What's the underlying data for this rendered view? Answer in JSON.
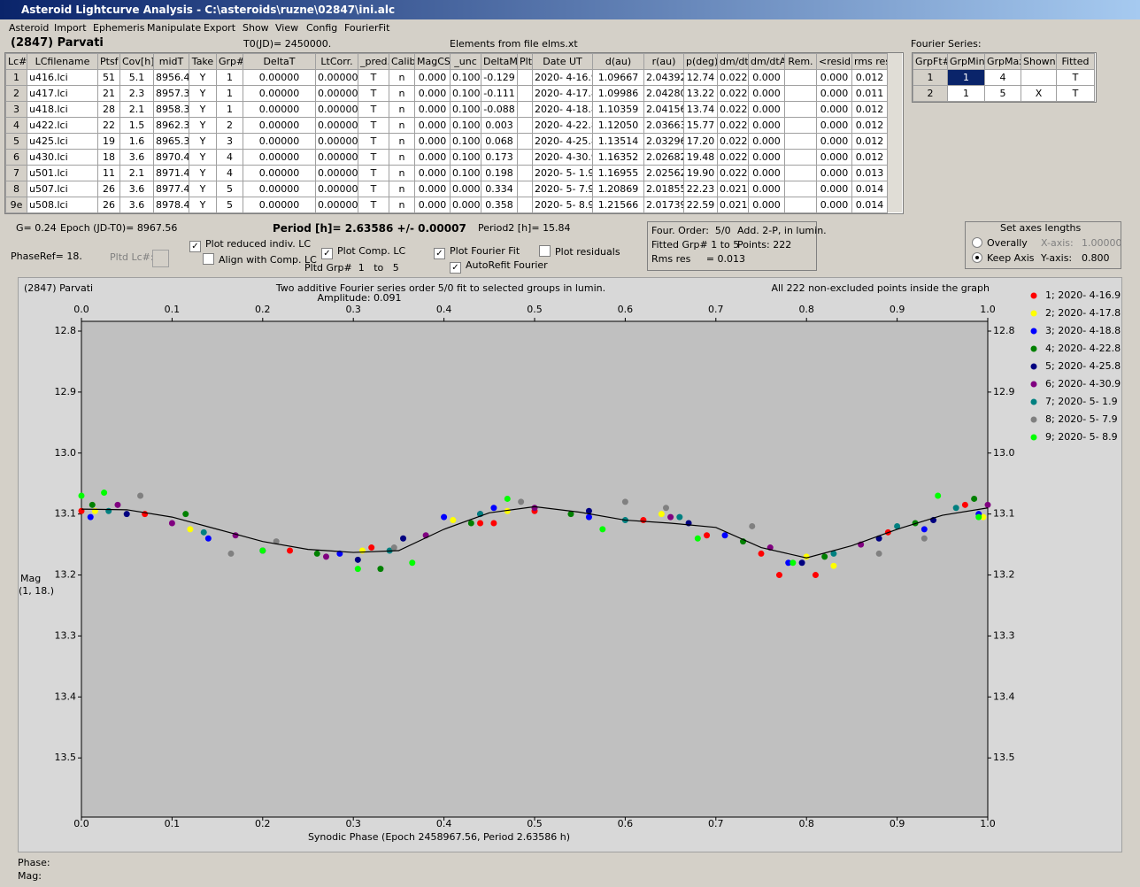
{
  "window": {
    "title": "Asteroid Lightcurve Analysis - C:\\asteroids\\ruzne\\02847\\ini.alc"
  },
  "menu": [
    "Asteroid",
    "Import",
    "Ephemeris",
    "Manipulate",
    "Export",
    "Show",
    "View",
    "Config",
    "FourierFit"
  ],
  "header": {
    "asteroid": "(2847) Parvati",
    "t0": "T0(JD)= 2450000.",
    "elements": "Elements from file elms.xt"
  },
  "lc_table": {
    "columns": [
      "Lc#",
      "LCfilename",
      "Ptsf",
      "Cov[h]",
      "midT",
      "Take",
      "Grp#",
      "DeltaT",
      "LtCorr.",
      "_pred.",
      "Calib",
      "MagCS",
      "_unc",
      "DeltaM",
      "Plt",
      "Date UT",
      "d(au)",
      "r(au)",
      "p(deg)",
      "dm/dt",
      "dm/dtA",
      "Rem.",
      "<resid>",
      "rms res"
    ],
    "rows": [
      [
        "1",
        "u416.lci",
        "51",
        "5.1",
        "8956.4",
        "Y",
        "1",
        "0.00000",
        "0.00000",
        "T",
        "n",
        "0.000",
        "0.100",
        "-0.129",
        null,
        "2020- 4-16.9",
        "1.09667",
        "2.04392",
        "12.74",
        "0.022",
        "0.000",
        null,
        "0.000",
        "0.012"
      ],
      [
        "2",
        "u417.lci",
        "21",
        "2.3",
        "8957.3",
        "Y",
        "1",
        "0.00000",
        "0.00000",
        "T",
        "n",
        "0.000",
        "0.100",
        "-0.111",
        null,
        "2020- 4-17.8",
        "1.09986",
        "2.04280",
        "13.22",
        "0.022",
        "0.000",
        null,
        "0.000",
        "0.011"
      ],
      [
        "3",
        "u418.lci",
        "28",
        "2.1",
        "8958.3",
        "Y",
        "1",
        "0.00000",
        "0.00000",
        "T",
        "n",
        "0.000",
        "0.100",
        "-0.088",
        null,
        "2020- 4-18.8",
        "1.10359",
        "2.04156",
        "13.74",
        "0.022",
        "0.000",
        null,
        "0.000",
        "0.012"
      ],
      [
        "4",
        "u422.lci",
        "22",
        "1.5",
        "8962.3",
        "Y",
        "2",
        "0.00000",
        "0.00000",
        "T",
        "n",
        "0.000",
        "0.100",
        "0.003",
        null,
        "2020- 4-22.8",
        "1.12050",
        "2.03663",
        "15.77",
        "0.022",
        "0.000",
        null,
        "0.000",
        "0.012"
      ],
      [
        "5",
        "u425.lci",
        "19",
        "1.6",
        "8965.3",
        "Y",
        "3",
        "0.00000",
        "0.00000",
        "T",
        "n",
        "0.000",
        "0.100",
        "0.068",
        null,
        "2020- 4-25.8",
        "1.13514",
        "2.03296",
        "17.20",
        "0.022",
        "0.000",
        null,
        "0.000",
        "0.012"
      ],
      [
        "6",
        "u430.lci",
        "18",
        "3.6",
        "8970.4",
        "Y",
        "4",
        "0.00000",
        "0.00000",
        "T",
        "n",
        "0.000",
        "0.100",
        "0.173",
        null,
        "2020- 4-30.9",
        "1.16352",
        "2.02682",
        "19.48",
        "0.022",
        "0.000",
        null,
        "0.000",
        "0.012"
      ],
      [
        "7",
        "u501.lci",
        "11",
        "2.1",
        "8971.4",
        "Y",
        "4",
        "0.00000",
        "0.00000",
        "T",
        "n",
        "0.000",
        "0.100",
        "0.198",
        null,
        "2020- 5- 1.9",
        "1.16955",
        "2.02562",
        "19.90",
        "0.022",
        "0.000",
        null,
        "0.000",
        "0.013"
      ],
      [
        "8",
        "u507.lci",
        "26",
        "3.6",
        "8977.4",
        "Y",
        "5",
        "0.00000",
        "0.00000",
        "T",
        "n",
        "0.000",
        "0.000",
        "0.334",
        null,
        "2020- 5- 7.9",
        "1.20869",
        "2.01855",
        "22.23",
        "0.021",
        "0.000",
        null,
        "0.000",
        "0.014"
      ],
      [
        "9e",
        "u508.lci",
        "26",
        "3.6",
        "8978.4",
        "Y",
        "5",
        "0.00000",
        "0.00000",
        "T",
        "n",
        "0.000",
        "0.000",
        "0.358",
        null,
        "2020- 5- 8.9",
        "1.21566",
        "2.01739",
        "22.59",
        "0.021",
        "0.000",
        null,
        "0.000",
        "0.014"
      ]
    ]
  },
  "fourier": {
    "label": "Fourier Series:",
    "columns": [
      "GrpFt#",
      "GrpMin",
      "GrpMax",
      "Shown",
      "Fitted"
    ],
    "rows": [
      [
        "1",
        "1",
        "4",
        null,
        "T"
      ],
      [
        "2",
        "1",
        "5",
        "X",
        "T"
      ]
    ]
  },
  "controls": {
    "g": "G= 0.24",
    "epoch": "Epoch (JD-T0)= 8967.56",
    "period": "Period [h]= 2.63586 +/- 0.00007",
    "period2": "Period2 [h]= 15.84",
    "phaseref": "PhaseRef= 18.",
    "pltd_lc": "Pltd Lc#:",
    "pltd_grp": "Pltd Grp#  1   to   5",
    "checks": [
      {
        "label": "Plot reduced indiv. LC",
        "checked": true
      },
      {
        "label": "Align with Comp. LC",
        "checked": false
      },
      {
        "label": "Plot Comp. LC",
        "checked": true
      },
      {
        "label": "Plot Fourier Fit",
        "checked": true
      },
      {
        "label": "AutoRefit Fourier",
        "checked": true
      },
      {
        "label": "Plot residuals",
        "checked": false
      }
    ],
    "info": [
      "Four. Order:  5/0",
      "Add. 2-P, in lumin.",
      "Fitted Grp# 1 to 5",
      "Points: 222",
      "Rms res     = 0.013"
    ],
    "axes": {
      "title": "Set axes lengths",
      "radios": [
        {
          "label": "Overally",
          "selected": false
        },
        {
          "label": "Keep Axis",
          "selected": true
        }
      ],
      "x_label": "X-axis:",
      "x_value": "1.00000",
      "y_label": "Y-axis:",
      "y_value": "0.800"
    },
    "phase": "Phase:",
    "mag": "Mag:"
  },
  "chart_data": {
    "type": "scatter",
    "name": "(2847) Parvati",
    "title": "Two additive Fourier series order 5/0 fit to selected groups in lumin.",
    "subtitle": "Amplitude: 0.091",
    "note": "All 222 non-excluded points inside the graph",
    "x_label": "Synodic Phase (Epoch 2458967.56, Period 2.63586 h)",
    "y_label": [
      "Mag",
      "(1, 18.)"
    ],
    "xlim": [
      0,
      1
    ],
    "ylim": [
      12.784,
      13.597
    ],
    "y_reversed": true,
    "xticks": [
      {
        "value": 0,
        "label": "0.0"
      },
      0.1,
      0.2,
      0.3,
      0.4,
      0.5,
      0.6,
      0.7,
      0.8,
      0.9,
      {
        "value": 1,
        "label": "1.0"
      }
    ],
    "yticks": [
      12.8,
      12.9,
      {
        "value": 13,
        "label": "13.0"
      },
      13.1,
      13.2,
      13.3,
      13.4,
      13.5
    ],
    "fit": {
      "color": "#000000",
      "x": [
        0,
        0.05,
        0.1,
        0.15,
        0.2,
        0.25,
        0.3,
        0.35,
        0.4,
        0.45,
        0.5,
        0.55,
        0.6,
        0.65,
        0.7,
        0.75,
        0.8,
        0.85,
        0.9,
        0.95,
        1
      ],
      "values": [
        13.092,
        13.093,
        13.105,
        13.125,
        13.145,
        13.158,
        13.163,
        13.16,
        13.125,
        13.098,
        13.088,
        13.097,
        13.11,
        13.115,
        13.122,
        13.155,
        13.172,
        13.152,
        13.125,
        13.102,
        13.09
      ]
    },
    "series": [
      {
        "name": "1; 2020- 4-16.9",
        "color": "#ff0000",
        "x": [
          0,
          0.07,
          0.23,
          0.32,
          0.44,
          0.455,
          0.5,
          0.62,
          0.69,
          0.75,
          0.77,
          0.81,
          0.89,
          0.975
        ],
        "values": [
          13.095,
          13.1,
          13.16,
          13.155,
          13.115,
          13.115,
          13.095,
          13.11,
          13.135,
          13.165,
          13.2,
          13.2,
          13.13,
          13.085
        ]
      },
      {
        "name": "2; 2020- 4-17.8",
        "color": "#ffff00",
        "x": [
          0.015,
          0.12,
          0.31,
          0.41,
          0.47,
          0.64,
          0.8,
          0.83,
          0.995
        ],
        "values": [
          13.095,
          13.125,
          13.16,
          13.11,
          13.095,
          13.1,
          13.17,
          13.185,
          13.105
        ]
      },
      {
        "name": "3; 2020- 4-18.8",
        "color": "#0000ff",
        "x": [
          0.01,
          0.14,
          0.285,
          0.4,
          0.455,
          0.56,
          0.71,
          0.78,
          0.93,
          0.99
        ],
        "values": [
          13.105,
          13.14,
          13.165,
          13.105,
          13.09,
          13.105,
          13.135,
          13.18,
          13.125,
          13.1
        ]
      },
      {
        "name": "4; 2020- 4-22.8",
        "color": "#008000",
        "x": [
          0.012,
          0.115,
          0.26,
          0.33,
          0.43,
          0.54,
          0.73,
          0.82,
          0.92,
          0.985
        ],
        "values": [
          13.085,
          13.1,
          13.165,
          13.19,
          13.115,
          13.1,
          13.145,
          13.17,
          13.115,
          13.075
        ]
      },
      {
        "name": "5; 2020- 4-25.8",
        "color": "#000080",
        "x": [
          0.05,
          0.2,
          0.305,
          0.355,
          0.44,
          0.56,
          0.67,
          0.795,
          0.88,
          0.94
        ],
        "values": [
          13.1,
          13.16,
          13.175,
          13.14,
          13.1,
          13.095,
          13.115,
          13.18,
          13.14,
          13.11
        ]
      },
      {
        "name": "6; 2020- 4-30.9",
        "color": "#800080",
        "x": [
          0.04,
          0.1,
          0.17,
          0.27,
          0.38,
          0.5,
          0.65,
          0.76,
          0.86,
          1
        ],
        "values": [
          13.085,
          13.115,
          13.135,
          13.17,
          13.135,
          13.09,
          13.105,
          13.155,
          13.15,
          13.085
        ]
      },
      {
        "name": "7; 2020- 5- 1.9",
        "color": "#008080",
        "x": [
          0.03,
          0.135,
          0.34,
          0.44,
          0.6,
          0.66,
          0.83,
          0.9,
          0.965
        ],
        "values": [
          13.095,
          13.13,
          13.16,
          13.1,
          13.11,
          13.105,
          13.165,
          13.12,
          13.09
        ]
      },
      {
        "name": "8; 2020- 5- 7.9",
        "color": "#808080",
        "x": [
          0.065,
          0.165,
          0.215,
          0.345,
          0.485,
          0.6,
          0.645,
          0.74,
          0.88,
          0.93
        ],
        "values": [
          13.07,
          13.165,
          13.145,
          13.155,
          13.08,
          13.08,
          13.09,
          13.12,
          13.165,
          13.14
        ]
      },
      {
        "name": "9; 2020- 5- 8.9",
        "color": "#00ff00",
        "x": [
          0,
          0.025,
          0.2,
          0.305,
          0.365,
          0.47,
          0.575,
          0.68,
          0.785,
          0.945,
          0.99
        ],
        "values": [
          13.07,
          13.065,
          13.16,
          13.19,
          13.18,
          13.075,
          13.125,
          13.14,
          13.18,
          13.07,
          13.105
        ]
      }
    ]
  }
}
